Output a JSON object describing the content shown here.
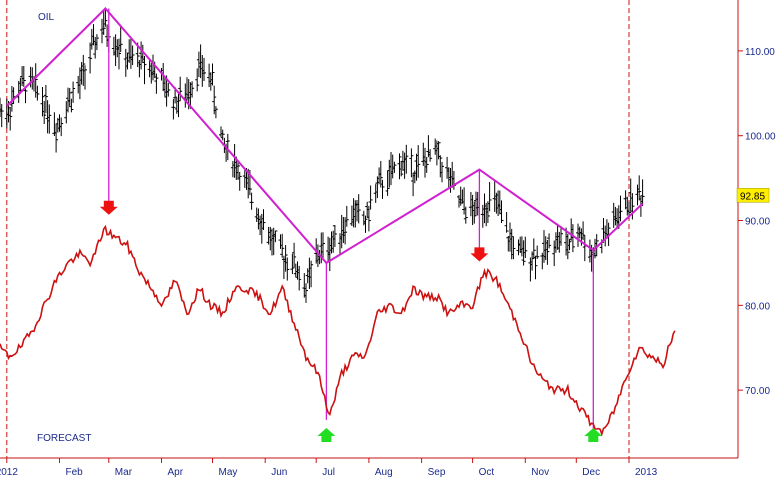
{
  "chart_data": {
    "type": "line",
    "series_labels": {
      "oil": "OIL",
      "forecast": "FORECAST"
    },
    "last_price": "92.85",
    "y_ticks": [
      "110.00",
      "100.00",
      "90.00",
      "80.00",
      "70.00"
    ],
    "y_values": [
      110,
      100,
      90,
      80,
      70
    ],
    "ylim": [
      62,
      116
    ],
    "x_ticks": [
      "2012",
      "Feb",
      "Mar",
      "Apr",
      "May",
      "Jun",
      "Jul",
      "Aug",
      "Sep",
      "Oct",
      "Nov",
      "Dec",
      "2013"
    ],
    "oil": [
      {
        "x": "2012-01-02",
        "y": 103
      },
      {
        "x": "2012-01-09",
        "y": 106
      },
      {
        "x": "2012-01-16",
        "y": 106
      },
      {
        "x": "2012-01-23",
        "y": 104
      },
      {
        "x": "2012-01-30",
        "y": 101
      },
      {
        "x": "2012-02-06",
        "y": 104
      },
      {
        "x": "2012-02-13",
        "y": 106
      },
      {
        "x": "2012-02-20",
        "y": 110
      },
      {
        "x": "2012-02-27",
        "y": 113
      },
      {
        "x": "2012-03-05",
        "y": 111
      },
      {
        "x": "2012-03-12",
        "y": 109
      },
      {
        "x": "2012-03-19",
        "y": 109
      },
      {
        "x": "2012-03-26",
        "y": 108
      },
      {
        "x": "2012-04-02",
        "y": 106
      },
      {
        "x": "2012-04-09",
        "y": 104
      },
      {
        "x": "2012-04-16",
        "y": 105
      },
      {
        "x": "2012-04-23",
        "y": 108
      },
      {
        "x": "2012-04-30",
        "y": 107
      },
      {
        "x": "2012-05-07",
        "y": 99
      },
      {
        "x": "2012-05-14",
        "y": 97
      },
      {
        "x": "2012-05-21",
        "y": 94
      },
      {
        "x": "2012-05-28",
        "y": 91
      },
      {
        "x": "2012-06-04",
        "y": 88
      },
      {
        "x": "2012-06-11",
        "y": 86
      },
      {
        "x": "2012-06-18",
        "y": 85
      },
      {
        "x": "2012-06-25",
        "y": 82
      },
      {
        "x": "2012-07-02",
        "y": 86
      },
      {
        "x": "2012-07-09",
        "y": 87
      },
      {
        "x": "2012-07-16",
        "y": 89
      },
      {
        "x": "2012-07-23",
        "y": 91
      },
      {
        "x": "2012-07-30",
        "y": 90
      },
      {
        "x": "2012-08-06",
        "y": 94
      },
      {
        "x": "2012-08-13",
        "y": 95
      },
      {
        "x": "2012-08-20",
        "y": 97
      },
      {
        "x": "2012-08-27",
        "y": 96
      },
      {
        "x": "2012-09-03",
        "y": 97
      },
      {
        "x": "2012-09-10",
        "y": 98
      },
      {
        "x": "2012-09-17",
        "y": 95
      },
      {
        "x": "2012-09-24",
        "y": 92
      },
      {
        "x": "2012-10-01",
        "y": 91
      },
      {
        "x": "2012-10-08",
        "y": 92
      },
      {
        "x": "2012-10-15",
        "y": 92
      },
      {
        "x": "2012-10-22",
        "y": 88
      },
      {
        "x": "2012-10-29",
        "y": 86
      },
      {
        "x": "2012-11-05",
        "y": 86
      },
      {
        "x": "2012-11-12",
        "y": 86
      },
      {
        "x": "2012-11-19",
        "y": 88
      },
      {
        "x": "2012-11-26",
        "y": 87
      },
      {
        "x": "2012-12-03",
        "y": 89
      },
      {
        "x": "2012-12-10",
        "y": 86
      },
      {
        "x": "2012-12-17",
        "y": 88
      },
      {
        "x": "2012-12-24",
        "y": 90
      },
      {
        "x": "2012-12-31",
        "y": 92
      },
      {
        "x": "2013-01-07",
        "y": 93
      }
    ],
    "forecast": [
      {
        "x": "2011-12-28",
        "y": 75
      },
      {
        "x": "2012-01-02",
        "y": 74
      },
      {
        "x": "2012-01-09",
        "y": 75
      },
      {
        "x": "2012-01-16",
        "y": 77
      },
      {
        "x": "2012-01-23",
        "y": 80
      },
      {
        "x": "2012-01-30",
        "y": 83
      },
      {
        "x": "2012-02-06",
        "y": 85
      },
      {
        "x": "2012-02-13",
        "y": 86
      },
      {
        "x": "2012-02-20",
        "y": 85
      },
      {
        "x": "2012-02-27",
        "y": 89
      },
      {
        "x": "2012-03-05",
        "y": 88
      },
      {
        "x": "2012-03-12",
        "y": 87
      },
      {
        "x": "2012-03-19",
        "y": 84
      },
      {
        "x": "2012-03-26",
        "y": 82
      },
      {
        "x": "2012-04-02",
        "y": 80
      },
      {
        "x": "2012-04-09",
        "y": 83
      },
      {
        "x": "2012-04-16",
        "y": 79
      },
      {
        "x": "2012-04-23",
        "y": 82
      },
      {
        "x": "2012-04-30",
        "y": 80
      },
      {
        "x": "2012-05-07",
        "y": 79
      },
      {
        "x": "2012-05-14",
        "y": 82
      },
      {
        "x": "2012-05-21",
        "y": 82
      },
      {
        "x": "2012-05-28",
        "y": 81
      },
      {
        "x": "2012-06-04",
        "y": 79
      },
      {
        "x": "2012-06-11",
        "y": 82
      },
      {
        "x": "2012-06-18",
        "y": 78
      },
      {
        "x": "2012-06-25",
        "y": 74
      },
      {
        "x": "2012-07-02",
        "y": 72
      },
      {
        "x": "2012-07-09",
        "y": 67
      },
      {
        "x": "2012-07-16",
        "y": 72
      },
      {
        "x": "2012-07-23",
        "y": 74
      },
      {
        "x": "2012-07-30",
        "y": 74
      },
      {
        "x": "2012-08-06",
        "y": 79
      },
      {
        "x": "2012-08-13",
        "y": 80
      },
      {
        "x": "2012-08-20",
        "y": 79
      },
      {
        "x": "2012-08-27",
        "y": 82
      },
      {
        "x": "2012-09-03",
        "y": 81
      },
      {
        "x": "2012-09-10",
        "y": 81
      },
      {
        "x": "2012-09-17",
        "y": 79
      },
      {
        "x": "2012-09-24",
        "y": 80
      },
      {
        "x": "2012-10-01",
        "y": 80
      },
      {
        "x": "2012-10-08",
        "y": 84
      },
      {
        "x": "2012-10-15",
        "y": 83
      },
      {
        "x": "2012-10-22",
        "y": 80
      },
      {
        "x": "2012-10-29",
        "y": 77
      },
      {
        "x": "2012-11-05",
        "y": 73
      },
      {
        "x": "2012-11-12",
        "y": 71
      },
      {
        "x": "2012-11-19",
        "y": 70
      },
      {
        "x": "2012-11-26",
        "y": 70
      },
      {
        "x": "2012-12-03",
        "y": 68
      },
      {
        "x": "2012-12-10",
        "y": 66
      },
      {
        "x": "2012-12-17",
        "y": 65
      },
      {
        "x": "2012-12-24",
        "y": 68
      },
      {
        "x": "2012-12-31",
        "y": 72
      },
      {
        "x": "2013-01-07",
        "y": 75
      },
      {
        "x": "2013-01-14",
        "y": 74
      },
      {
        "x": "2013-01-21",
        "y": 73
      },
      {
        "x": "2013-01-28",
        "y": 77
      }
    ],
    "trendline": [
      {
        "x": "2012-01-01",
        "y": 103.5
      },
      {
        "x": "2012-02-28",
        "y": 115
      },
      {
        "x": "2012-07-07",
        "y": 85
      },
      {
        "x": "2012-10-05",
        "y": 96
      },
      {
        "x": "2012-12-11",
        "y": 86.5
      },
      {
        "x": "2013-01-09",
        "y": 92
      }
    ],
    "signals": [
      {
        "type": "sell",
        "x": "2012-03-01",
        "y_price": 115,
        "y_forecast": 89.5
      },
      {
        "type": "buy",
        "x": "2012-07-07",
        "y_price": 85,
        "y_forecast": 66.5
      },
      {
        "type": "sell",
        "x": "2012-10-05",
        "y_price": 96,
        "y_forecast": 84
      },
      {
        "type": "buy",
        "x": "2012-12-11",
        "y_price": 86.5,
        "y_forecast": 65
      }
    ],
    "colors": {
      "price_bars": "#000000",
      "forecast_line": "#cc1111",
      "trendline": "#d020d0",
      "signal_connector": "#d020d0",
      "sell_arrow": "#ee1111",
      "buy_arrow": "#22dd22",
      "axis_text": "#1a2a8c",
      "badge_bg": "#ffee00",
      "year_marker": "#cc1111"
    },
    "year_markers": [
      "2012-01-01",
      "2013-01-01"
    ],
    "grid": false
  }
}
